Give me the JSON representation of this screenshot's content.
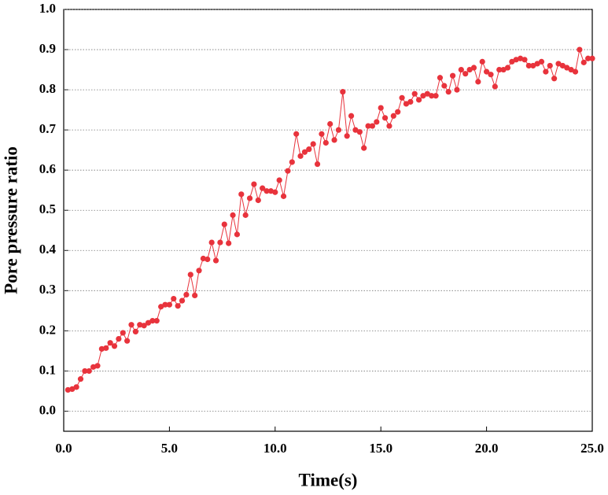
{
  "chart_data": {
    "type": "line",
    "xlabel": "Time(s)",
    "ylabel": "Pore pressure ratio",
    "color": "#e8333c",
    "x": [
      0.2,
      0.4,
      0.6,
      0.8,
      1.0,
      1.2,
      1.4,
      1.6,
      1.8,
      2.0,
      2.2,
      2.4,
      2.6,
      2.8,
      3.0,
      3.2,
      3.4,
      3.6,
      3.8,
      4.0,
      4.2,
      4.4,
      4.6,
      4.8,
      5.0,
      5.2,
      5.4,
      5.6,
      5.8,
      6.0,
      6.2,
      6.4,
      6.6,
      6.8,
      7.0,
      7.2,
      7.4,
      7.6,
      7.8,
      8.0,
      8.2,
      8.4,
      8.6,
      8.8,
      9.0,
      9.2,
      9.4,
      9.6,
      9.8,
      10.0,
      10.2,
      10.4,
      10.6,
      10.8,
      11.0,
      11.2,
      11.4,
      11.6,
      11.8,
      12.0,
      12.2,
      12.4,
      12.6,
      12.8,
      13.0,
      13.2,
      13.4,
      13.6,
      13.8,
      14.0,
      14.2,
      14.4,
      14.6,
      14.8,
      15.0,
      15.2,
      15.4,
      15.6,
      15.8,
      16.0,
      16.2,
      16.4,
      16.6,
      16.8,
      17.0,
      17.2,
      17.4,
      17.6,
      17.8,
      18.0,
      18.2,
      18.4,
      18.6,
      18.8,
      19.0,
      19.2,
      19.4,
      19.6,
      19.8,
      20.0,
      20.2,
      20.4,
      20.6,
      20.8,
      21.0,
      21.2,
      21.4,
      21.6,
      21.8,
      22.0,
      22.2,
      22.4,
      22.6,
      22.8,
      23.0,
      23.2,
      23.4,
      23.6,
      23.8,
      24.0,
      24.2,
      24.4,
      24.6,
      24.8,
      25.0
    ],
    "values": [
      0.053,
      0.055,
      0.06,
      0.08,
      0.1,
      0.1,
      0.11,
      0.113,
      0.155,
      0.157,
      0.17,
      0.162,
      0.18,
      0.195,
      0.175,
      0.215,
      0.198,
      0.215,
      0.213,
      0.22,
      0.225,
      0.225,
      0.26,
      0.265,
      0.265,
      0.28,
      0.262,
      0.275,
      0.29,
      0.34,
      0.288,
      0.35,
      0.38,
      0.378,
      0.42,
      0.375,
      0.42,
      0.465,
      0.418,
      0.488,
      0.44,
      0.54,
      0.488,
      0.53,
      0.565,
      0.525,
      0.555,
      0.548,
      0.548,
      0.545,
      0.575,
      0.535,
      0.598,
      0.62,
      0.69,
      0.635,
      0.645,
      0.652,
      0.665,
      0.615,
      0.69,
      0.668,
      0.715,
      0.675,
      0.7,
      0.795,
      0.685,
      0.735,
      0.7,
      0.695,
      0.655,
      0.71,
      0.71,
      0.72,
      0.755,
      0.73,
      0.71,
      0.735,
      0.745,
      0.78,
      0.765,
      0.77,
      0.79,
      0.775,
      0.785,
      0.79,
      0.785,
      0.785,
      0.83,
      0.81,
      0.795,
      0.835,
      0.8,
      0.85,
      0.84,
      0.85,
      0.855,
      0.82,
      0.87,
      0.845,
      0.838,
      0.808,
      0.85,
      0.85,
      0.855,
      0.87,
      0.875,
      0.878,
      0.875,
      0.86,
      0.86,
      0.865,
      0.87,
      0.845,
      0.86,
      0.828,
      0.865,
      0.86,
      0.855,
      0.85,
      0.845,
      0.9,
      0.868,
      0.878,
      0.878
    ],
    "xlim": [
      0,
      25
    ],
    "xticks": [
      {
        "value": 0,
        "label": "0.0"
      },
      {
        "value": 5,
        "label": "5.0"
      },
      {
        "value": 10,
        "label": "10.0"
      },
      {
        "value": 15,
        "label": "15.0"
      },
      {
        "value": 20,
        "label": "20.0"
      },
      {
        "value": 25,
        "label": "25.0"
      }
    ],
    "ylim": [
      -0.05,
      1.0
    ],
    "yticks": [
      {
        "value": 0,
        "label": "0.0"
      },
      {
        "value": 0.1,
        "label": "0.1"
      },
      {
        "value": 0.2,
        "label": "0.2"
      },
      {
        "value": 0.3,
        "label": "0.3"
      },
      {
        "value": 0.4,
        "label": "0.4"
      },
      {
        "value": 0.5,
        "label": "0.5"
      },
      {
        "value": 0.6,
        "label": "0.6"
      },
      {
        "value": 0.7,
        "label": "0.7"
      },
      {
        "value": 0.8,
        "label": "0.8"
      },
      {
        "value": 0.9,
        "label": "0.9"
      },
      {
        "value": 1.0,
        "label": "1.0"
      }
    ],
    "grid": true
  }
}
